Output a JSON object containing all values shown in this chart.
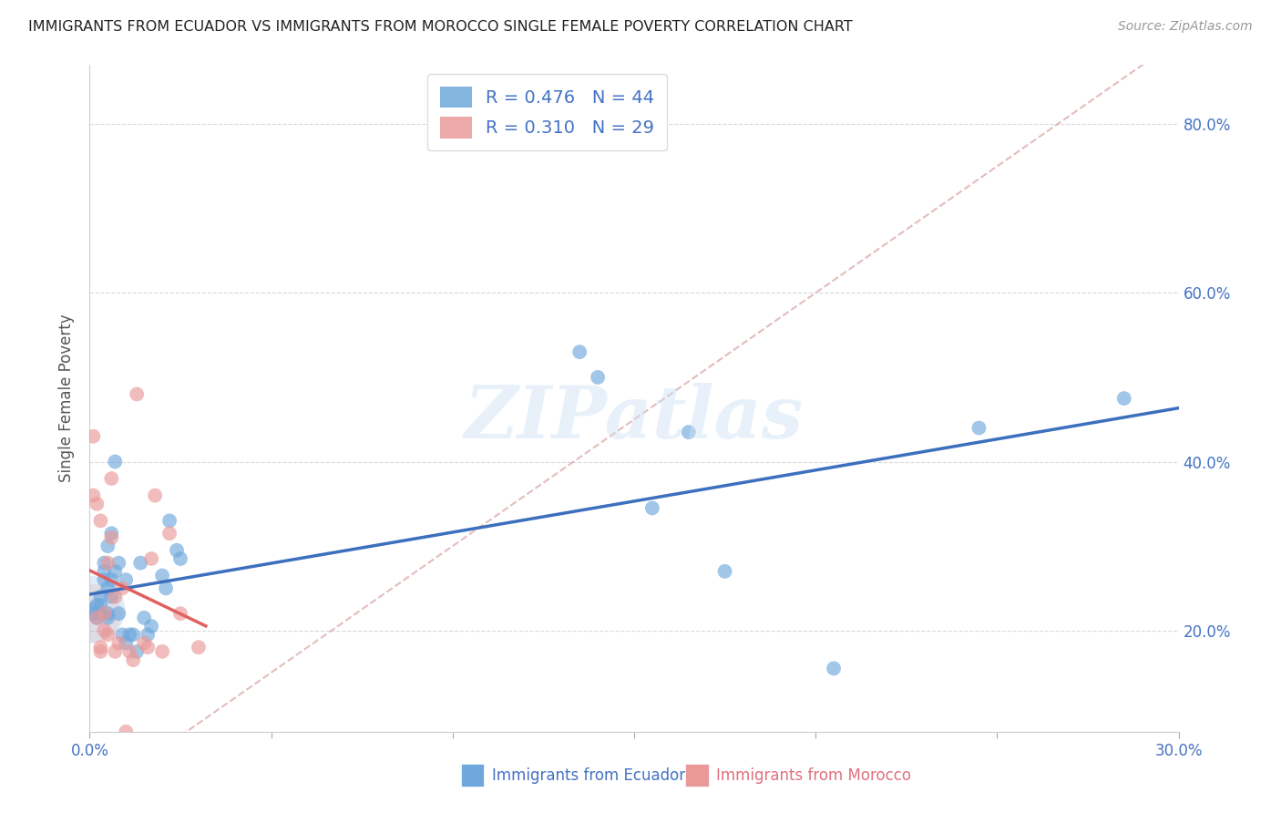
{
  "title": "IMMIGRANTS FROM ECUADOR VS IMMIGRANTS FROM MOROCCO SINGLE FEMALE POVERTY CORRELATION CHART",
  "source": "Source: ZipAtlas.com",
  "ylabel": "Single Female Poverty",
  "xlim": [
    0.0,
    0.3
  ],
  "ylim": [
    0.08,
    0.87
  ],
  "xtick_positions": [
    0.0,
    0.05,
    0.1,
    0.15,
    0.2,
    0.25,
    0.3
  ],
  "ytick_positions": [
    0.2,
    0.4,
    0.6,
    0.8
  ],
  "ecuador_color": "#6fa8dc",
  "morocco_color": "#ea9999",
  "ecuador_R": "0.476",
  "ecuador_N": 44,
  "morocco_R": "0.310",
  "morocco_N": 29,
  "watermark": "ZIPatlas",
  "reg_line_ecuador": "#3c6fbd",
  "reg_line_morocco": "#e06060",
  "ref_line_color": "#d9a0a0",
  "axis_label_color": "#4472c4",
  "grid_color": "#d9d9d9",
  "ecuador_x": [
    0.001,
    0.001,
    0.002,
    0.002,
    0.003,
    0.003,
    0.003,
    0.004,
    0.004,
    0.004,
    0.005,
    0.005,
    0.005,
    0.005,
    0.006,
    0.006,
    0.006,
    0.007,
    0.007,
    0.008,
    0.008,
    0.009,
    0.01,
    0.01,
    0.011,
    0.012,
    0.013,
    0.014,
    0.015,
    0.016,
    0.017,
    0.02,
    0.021,
    0.022,
    0.024,
    0.025,
    0.135,
    0.14,
    0.155,
    0.165,
    0.175,
    0.205,
    0.245,
    0.285
  ],
  "ecuador_y": [
    0.225,
    0.22,
    0.215,
    0.23,
    0.24,
    0.22,
    0.23,
    0.26,
    0.27,
    0.28,
    0.22,
    0.215,
    0.25,
    0.3,
    0.24,
    0.26,
    0.315,
    0.27,
    0.4,
    0.22,
    0.28,
    0.195,
    0.26,
    0.185,
    0.195,
    0.195,
    0.175,
    0.28,
    0.215,
    0.195,
    0.205,
    0.265,
    0.25,
    0.33,
    0.295,
    0.285,
    0.53,
    0.5,
    0.345,
    0.435,
    0.27,
    0.155,
    0.44,
    0.475
  ],
  "morocco_x": [
    0.001,
    0.001,
    0.002,
    0.002,
    0.003,
    0.003,
    0.003,
    0.004,
    0.004,
    0.005,
    0.005,
    0.006,
    0.006,
    0.007,
    0.007,
    0.008,
    0.009,
    0.01,
    0.011,
    0.012,
    0.013,
    0.015,
    0.016,
    0.017,
    0.018,
    0.02,
    0.022,
    0.025,
    0.03
  ],
  "morocco_y": [
    0.43,
    0.36,
    0.35,
    0.215,
    0.33,
    0.175,
    0.18,
    0.22,
    0.2,
    0.28,
    0.195,
    0.31,
    0.38,
    0.24,
    0.175,
    0.185,
    0.25,
    0.08,
    0.175,
    0.165,
    0.48,
    0.185,
    0.18,
    0.285,
    0.36,
    0.175,
    0.315,
    0.22,
    0.18
  ],
  "legend_labels": [
    "Immigrants from Ecuador",
    "Immigrants from Morocco"
  ]
}
